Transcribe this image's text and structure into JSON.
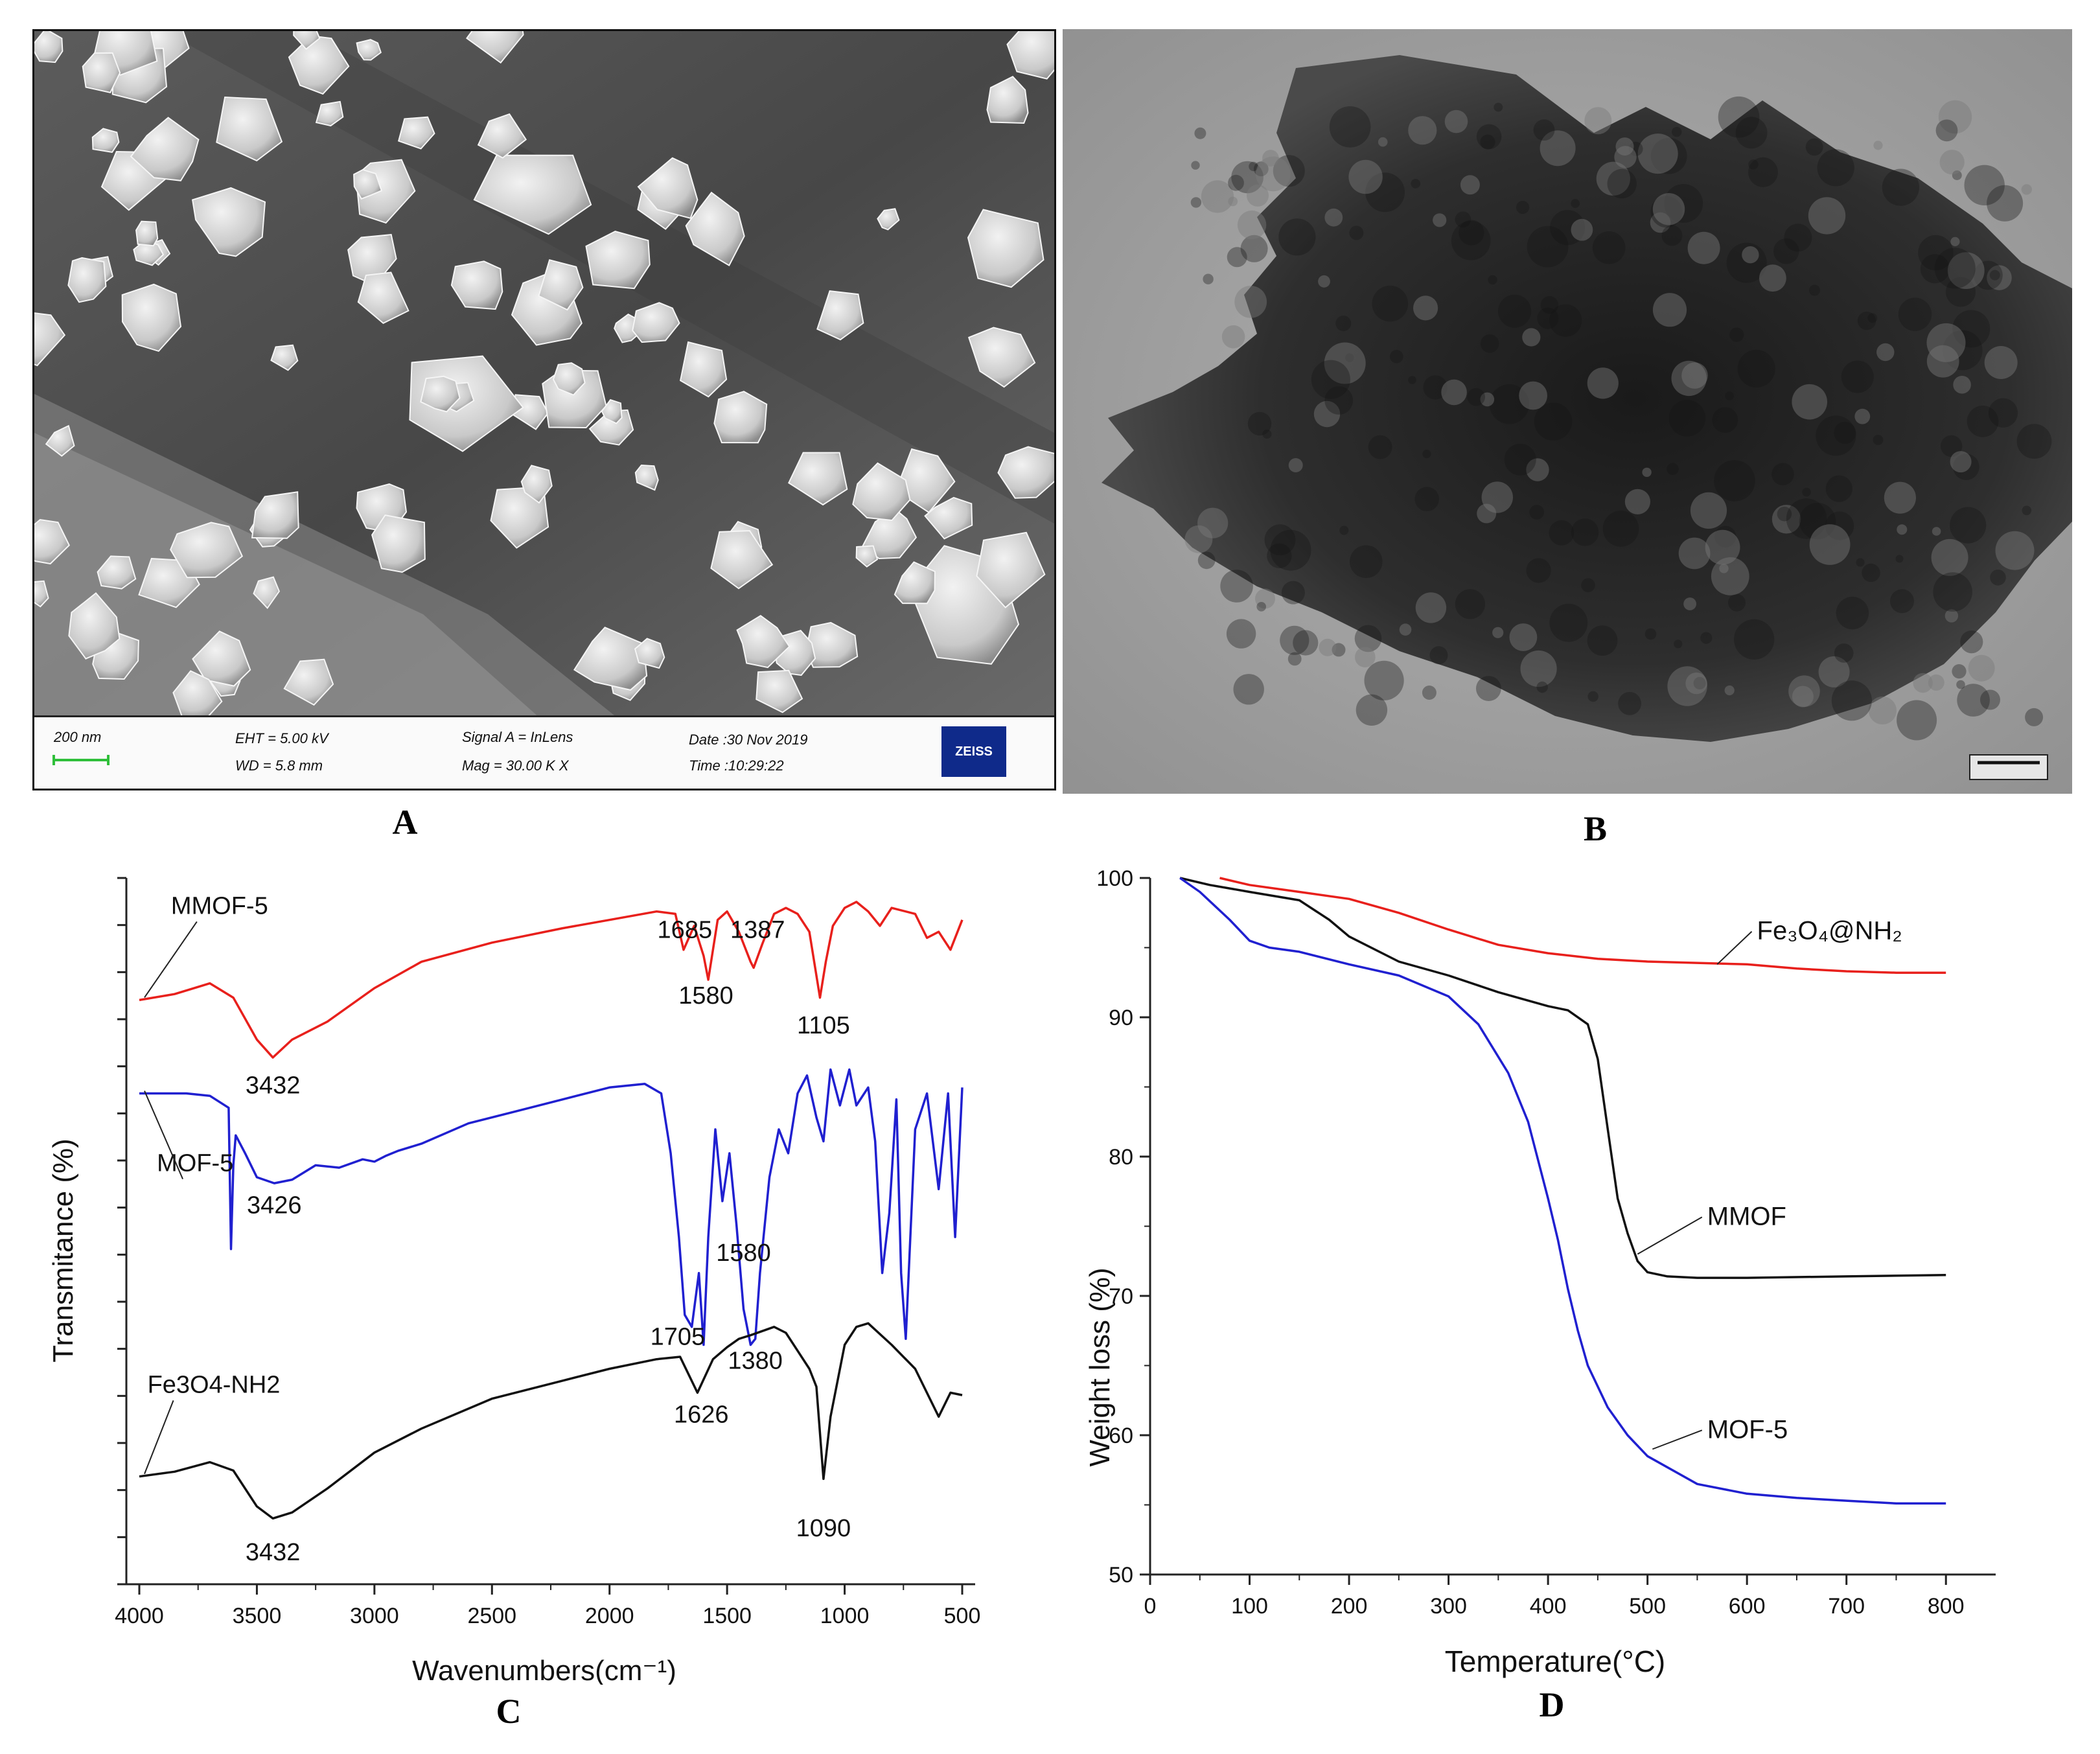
{
  "panels": {
    "A": {
      "caption": "A",
      "infobar": {
        "scale_label": "200 nm",
        "eht": "EHT = 5.00 kV",
        "wd": "WD = 5.8 mm",
        "signal": "Signal A = InLens",
        "mag": "Mag = 30.00 K X",
        "date": "Date :30 Nov 2019",
        "time": "Time :10:29:22",
        "logo_text": "ZEISS"
      }
    },
    "B": {
      "caption": "B"
    },
    "C": {
      "caption": "C"
    },
    "D": {
      "caption": "D"
    }
  },
  "chart_data": [
    {
      "type": "line",
      "panel": "C",
      "xlabel": "Wavenumbers(cm⁻¹)",
      "ylabel": "Transmitance (%)",
      "xlim": [
        4000,
        500
      ],
      "x_reversed": true,
      "x_ticks": [
        4000,
        3500,
        3000,
        2500,
        2000,
        1500,
        1000,
        500
      ],
      "y_tick_labels_shown": false,
      "series": [
        {
          "name": "MMOF-5",
          "color": "#e8201c",
          "x": [
            4000,
            3850,
            3700,
            3600,
            3500,
            3432,
            3350,
            3200,
            3000,
            2800,
            2500,
            2200,
            2000,
            1800,
            1720,
            1685,
            1640,
            1600,
            1580,
            1540,
            1500,
            1450,
            1400,
            1387,
            1350,
            1300,
            1250,
            1200,
            1150,
            1105,
            1080,
            1050,
            1000,
            950,
            900,
            850,
            800,
            700,
            650,
            600,
            550,
            500
          ],
          "values": [
            84.8,
            85.3,
            86.2,
            85.0,
            81.5,
            80.0,
            81.5,
            83.0,
            85.8,
            88.0,
            89.6,
            90.8,
            91.5,
            92.2,
            92.0,
            89.0,
            91.0,
            88.5,
            86.5,
            91.5,
            92.2,
            90.5,
            88.0,
            87.5,
            89.5,
            92.0,
            92.5,
            92.0,
            90.5,
            85.0,
            88.0,
            91.0,
            92.5,
            93.0,
            92.2,
            91.0,
            92.5,
            92.0,
            90.0,
            90.5,
            89.0,
            91.5
          ]
        },
        {
          "name": "MOF-5",
          "color": "#2020d0",
          "x": [
            4000,
            3800,
            3700,
            3620,
            3610,
            3600,
            3590,
            3550,
            3500,
            3426,
            3350,
            3250,
            3150,
            3050,
            3000,
            2950,
            2900,
            2800,
            2600,
            2400,
            2200,
            2000,
            1850,
            1780,
            1740,
            1705,
            1680,
            1650,
            1620,
            1600,
            1580,
            1550,
            1520,
            1490,
            1460,
            1430,
            1400,
            1380,
            1360,
            1320,
            1280,
            1240,
            1200,
            1160,
            1120,
            1090,
            1060,
            1020,
            980,
            950,
            900,
            870,
            840,
            810,
            780,
            760,
            740,
            700,
            650,
            600,
            560,
            530,
            500
          ],
          "values": [
            77.0,
            77.0,
            76.8,
            75.8,
            64.0,
            71.0,
            73.5,
            72.0,
            70.0,
            69.5,
            69.8,
            71.0,
            70.8,
            71.5,
            71.3,
            71.8,
            72.2,
            72.8,
            74.5,
            75.5,
            76.5,
            77.5,
            77.8,
            77.0,
            72.0,
            65.0,
            58.5,
            57.5,
            62.0,
            56.0,
            65.0,
            74.0,
            68.0,
            72.0,
            66.0,
            59.0,
            56.0,
            56.5,
            62.0,
            70.0,
            74.0,
            72.0,
            77.0,
            78.5,
            75.0,
            73.0,
            79.0,
            76.0,
            79.0,
            76.0,
            77.5,
            73.0,
            62.0,
            67.0,
            76.5,
            62.0,
            56.5,
            74.0,
            77.0,
            69.0,
            77.0,
            65.0,
            77.5
          ]
        },
        {
          "name": "Fe3O4-NH2",
          "color": "#111111",
          "x": [
            4000,
            3850,
            3700,
            3600,
            3500,
            3432,
            3350,
            3200,
            3000,
            2800,
            2500,
            2200,
            2000,
            1800,
            1700,
            1626,
            1560,
            1500,
            1450,
            1400,
            1300,
            1250,
            1200,
            1150,
            1120,
            1090,
            1060,
            1000,
            950,
            900,
            800,
            700,
            600,
            550,
            500
          ],
          "values": [
            45.0,
            45.4,
            46.2,
            45.5,
            42.5,
            41.5,
            42.0,
            44.0,
            47.0,
            49.0,
            51.5,
            53.0,
            54.0,
            54.8,
            55.0,
            52.0,
            54.8,
            55.8,
            56.5,
            56.8,
            57.5,
            57.0,
            55.5,
            54.0,
            52.5,
            44.8,
            50.0,
            56.0,
            57.5,
            57.8,
            56.0,
            54.0,
            50.0,
            52.0,
            51.8
          ]
        }
      ],
      "series_labels": [
        {
          "text": "MMOF-5",
          "series": 0,
          "x": 3700,
          "y": 92.0
        },
        {
          "text": "MOF-5",
          "series": 1,
          "x": 3760,
          "y": 70.5
        },
        {
          "text": "Fe3O4-NH2",
          "series": 2,
          "x": 3800,
          "y": 52.0
        }
      ],
      "annotations": [
        {
          "text": "3432",
          "x": 3432,
          "y": 77.0
        },
        {
          "text": "1685",
          "x": 1680,
          "y": 90.0
        },
        {
          "text": "1387",
          "x": 1370,
          "y": 90.0
        },
        {
          "text": "1580",
          "x": 1590,
          "y": 84.5
        },
        {
          "text": "1105",
          "x": 1090,
          "y": 82.0
        },
        {
          "text": "3426",
          "x": 3426,
          "y": 67.0
        },
        {
          "text": "1580",
          "x": 1430,
          "y": 63.0
        },
        {
          "text": "1705",
          "x": 1710,
          "y": 56.0
        },
        {
          "text": "1380",
          "x": 1380,
          "y": 54.0
        },
        {
          "text": "1626",
          "x": 1610,
          "y": 49.5
        },
        {
          "text": "1090",
          "x": 1090,
          "y": 40.0
        },
        {
          "text": "3432",
          "x": 3432,
          "y": 38.0
        }
      ]
    },
    {
      "type": "line",
      "panel": "D",
      "xlabel": "Temperature(°C)",
      "ylabel": "Weight loss (%)",
      "xlim": [
        0,
        850
      ],
      "ylim": [
        50,
        100
      ],
      "x_ticks": [
        0,
        100,
        200,
        300,
        400,
        500,
        600,
        700,
        800
      ],
      "y_ticks": [
        50,
        60,
        70,
        80,
        90,
        100
      ],
      "series": [
        {
          "name": "Fe₃O₄@NH₂",
          "color": "#e8201c",
          "x": [
            70,
            100,
            150,
            200,
            250,
            300,
            350,
            400,
            450,
            500,
            550,
            600,
            650,
            700,
            750,
            800
          ],
          "values": [
            100.0,
            99.5,
            99.0,
            98.5,
            97.5,
            96.3,
            95.2,
            94.6,
            94.2,
            94.0,
            93.9,
            93.8,
            93.5,
            93.3,
            93.2,
            93.2
          ]
        },
        {
          "name": "MMOF",
          "color": "#111111",
          "x": [
            30,
            60,
            100,
            150,
            180,
            200,
            250,
            300,
            350,
            400,
            420,
            440,
            450,
            460,
            470,
            480,
            490,
            500,
            520,
            550,
            600,
            700,
            800
          ],
          "values": [
            100.0,
            99.5,
            99.0,
            98.4,
            97.0,
            95.8,
            94.0,
            93.0,
            91.8,
            90.8,
            90.5,
            89.5,
            87.0,
            82.0,
            77.0,
            74.5,
            72.5,
            71.7,
            71.4,
            71.3,
            71.3,
            71.4,
            71.5
          ]
        },
        {
          "name": "MOF-5",
          "color": "#2020d0",
          "x": [
            30,
            50,
            80,
            100,
            120,
            150,
            200,
            250,
            300,
            330,
            360,
            380,
            400,
            410,
            420,
            430,
            440,
            460,
            480,
            500,
            550,
            600,
            650,
            700,
            750,
            800
          ],
          "values": [
            100.0,
            99.0,
            97.0,
            95.5,
            95.0,
            94.7,
            93.8,
            93.0,
            91.5,
            89.5,
            86.0,
            82.5,
            77.0,
            74.0,
            70.5,
            67.5,
            65.0,
            62.0,
            60.0,
            58.5,
            56.5,
            55.8,
            55.5,
            55.3,
            55.1,
            55.1
          ]
        }
      ],
      "series_labels": [
        {
          "text": "Fe₃O₄@NH₂",
          "series": 0,
          "x": 610,
          "y": 95.6,
          "point": [
            570,
            93.8
          ]
        },
        {
          "text": "MMOF",
          "series": 1,
          "x": 560,
          "y": 75.1,
          "point": [
            490,
            73.0
          ]
        },
        {
          "text": "MOF-5",
          "series": 2,
          "x": 560,
          "y": 59.8,
          "point": [
            505,
            59.0
          ]
        }
      ]
    }
  ]
}
